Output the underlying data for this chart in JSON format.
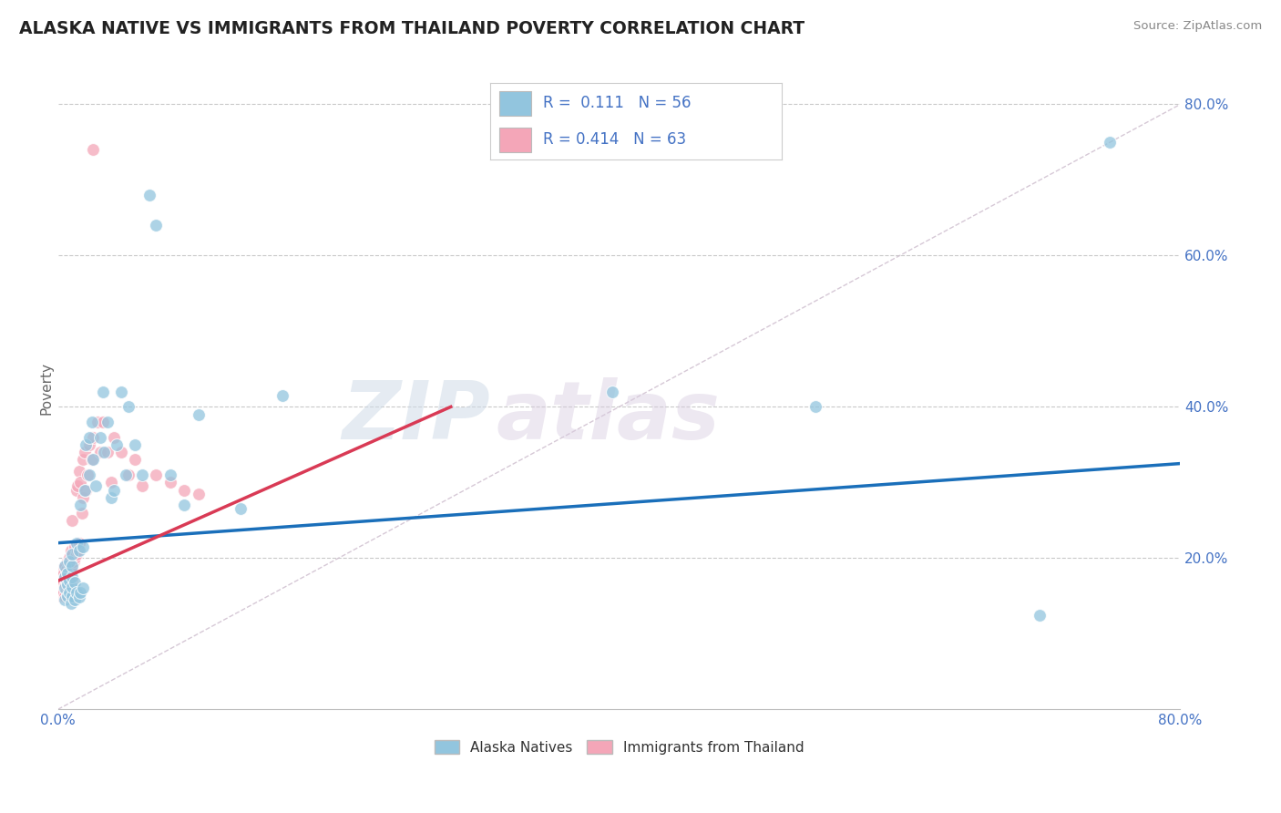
{
  "title": "ALASKA NATIVE VS IMMIGRANTS FROM THAILAND POVERTY CORRELATION CHART",
  "source": "Source: ZipAtlas.com",
  "ylabel": "Poverty",
  "right_yticks": [
    "80.0%",
    "60.0%",
    "40.0%",
    "20.0%"
  ],
  "right_ytick_vals": [
    0.8,
    0.6,
    0.4,
    0.2
  ],
  "legend_blue_R": "0.111",
  "legend_blue_N": "56",
  "legend_pink_R": "0.414",
  "legend_pink_N": "63",
  "blue_color": "#92c5de",
  "pink_color": "#f4a6b8",
  "trend_blue_color": "#1a6fba",
  "trend_pink_color": "#d93a55",
  "diag_color": "#ccbbcc",
  "watermark_color": "#d0dce8",
  "watermark_color2": "#d8cce0",
  "xlim": [
    0.0,
    0.8
  ],
  "ylim": [
    0.0,
    0.85
  ],
  "blue_scatter_x": [
    0.005,
    0.005,
    0.005,
    0.005,
    0.007,
    0.007,
    0.007,
    0.008,
    0.008,
    0.008,
    0.009,
    0.01,
    0.01,
    0.01,
    0.01,
    0.01,
    0.012,
    0.012,
    0.013,
    0.013,
    0.015,
    0.015,
    0.016,
    0.016,
    0.018,
    0.018,
    0.019,
    0.02,
    0.022,
    0.022,
    0.024,
    0.025,
    0.027,
    0.03,
    0.032,
    0.033,
    0.035,
    0.038,
    0.04,
    0.042,
    0.045,
    0.048,
    0.05,
    0.055,
    0.06,
    0.065,
    0.07,
    0.08,
    0.09,
    0.1,
    0.13,
    0.16,
    0.395,
    0.54,
    0.7,
    0.75
  ],
  "blue_scatter_y": [
    0.145,
    0.16,
    0.175,
    0.19,
    0.15,
    0.165,
    0.18,
    0.155,
    0.17,
    0.195,
    0.14,
    0.15,
    0.162,
    0.175,
    0.19,
    0.205,
    0.145,
    0.168,
    0.155,
    0.22,
    0.148,
    0.21,
    0.27,
    0.155,
    0.215,
    0.16,
    0.29,
    0.35,
    0.31,
    0.36,
    0.38,
    0.33,
    0.295,
    0.36,
    0.42,
    0.34,
    0.38,
    0.28,
    0.29,
    0.35,
    0.42,
    0.31,
    0.4,
    0.35,
    0.31,
    0.68,
    0.64,
    0.31,
    0.27,
    0.39,
    0.265,
    0.415,
    0.42,
    0.4,
    0.125,
    0.75
  ],
  "pink_scatter_x": [
    0.0,
    0.001,
    0.002,
    0.002,
    0.003,
    0.003,
    0.003,
    0.004,
    0.004,
    0.004,
    0.005,
    0.005,
    0.005,
    0.005,
    0.006,
    0.006,
    0.006,
    0.007,
    0.007,
    0.007,
    0.008,
    0.008,
    0.008,
    0.009,
    0.009,
    0.009,
    0.01,
    0.01,
    0.01,
    0.011,
    0.012,
    0.012,
    0.013,
    0.013,
    0.014,
    0.014,
    0.015,
    0.015,
    0.016,
    0.017,
    0.018,
    0.018,
    0.019,
    0.02,
    0.021,
    0.022,
    0.024,
    0.025,
    0.028,
    0.03,
    0.032,
    0.035,
    0.038,
    0.04,
    0.045,
    0.05,
    0.055,
    0.06,
    0.07,
    0.08,
    0.09,
    0.1,
    0.025
  ],
  "pink_scatter_y": [
    0.155,
    0.16,
    0.15,
    0.165,
    0.155,
    0.17,
    0.185,
    0.155,
    0.168,
    0.18,
    0.15,
    0.163,
    0.175,
    0.19,
    0.158,
    0.17,
    0.185,
    0.162,
    0.175,
    0.195,
    0.165,
    0.178,
    0.2,
    0.168,
    0.182,
    0.21,
    0.172,
    0.185,
    0.25,
    0.195,
    0.2,
    0.215,
    0.205,
    0.29,
    0.21,
    0.295,
    0.22,
    0.315,
    0.3,
    0.26,
    0.28,
    0.33,
    0.34,
    0.29,
    0.31,
    0.35,
    0.33,
    0.36,
    0.38,
    0.34,
    0.38,
    0.34,
    0.3,
    0.36,
    0.34,
    0.31,
    0.33,
    0.295,
    0.31,
    0.3,
    0.29,
    0.285,
    0.74
  ],
  "blue_trend_x": [
    0.0,
    0.8
  ],
  "blue_trend_y": [
    0.22,
    0.325
  ],
  "pink_trend_x": [
    0.0,
    0.28
  ],
  "pink_trend_y": [
    0.17,
    0.4
  ]
}
